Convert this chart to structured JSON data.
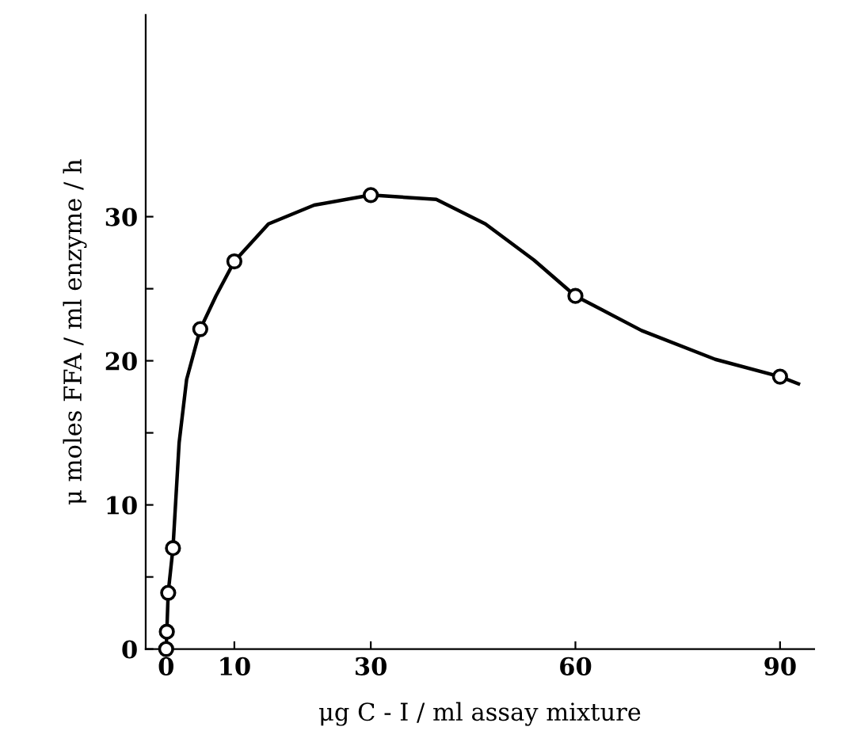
{
  "chart_data": {
    "type": "line",
    "xlabel": "μg C - I / ml assay mixture",
    "ylabel": "μ moles FFA / ml enzyme / h",
    "x": [
      0,
      0.1,
      0.3,
      1,
      5,
      10,
      30,
      60,
      90
    ],
    "series": [
      {
        "marker": "none",
        "color": "#000000",
        "x": [
          0,
          0.1,
          0.3,
          1,
          1.9,
          3,
          5,
          7.3,
          10,
          15,
          21.7,
          30,
          39.6,
          46.8,
          53.9,
          60,
          69.7,
          80.5,
          90,
          92.7
        ],
        "values": [
          0,
          1.2,
          3.9,
          7.0,
          14.3,
          18.7,
          22.2,
          24.5,
          26.9,
          29.5,
          30.8,
          31.5,
          31.2,
          29.5,
          27.0,
          24.5,
          22.1,
          20.1,
          18.9,
          18.4
        ]
      },
      {
        "type": "scatter",
        "color": "#000000",
        "values": [
          0,
          1.2,
          3.9,
          7.0,
          22.2,
          26.9,
          31.5,
          24.5,
          18.9
        ]
      }
    ],
    "marker": "circle",
    "line_style": "solid",
    "xlim": [
      -3,
      95
    ],
    "ylim": [
      0,
      44
    ],
    "xticks": [
      0,
      10,
      30,
      60,
      90
    ],
    "yticks": [
      0,
      {
        "value": 5,
        "label": null
      },
      10,
      {
        "value": 15,
        "label": null
      },
      20,
      {
        "value": 25,
        "label": null
      },
      30
    ],
    "grid": false,
    "legend": false
  }
}
